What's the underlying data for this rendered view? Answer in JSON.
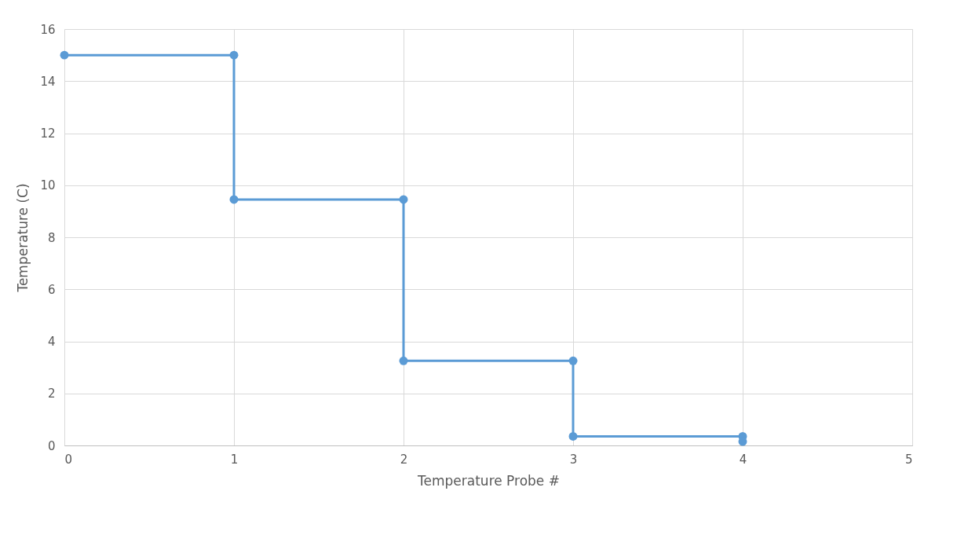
{
  "chart_data": {
    "type": "line",
    "xlabel": "Temperature Probe #",
    "ylabel": "Temperature (C)",
    "x": [
      0,
      1,
      1,
      2,
      2,
      3,
      3,
      4,
      4
    ],
    "series": [
      {
        "color": "#5b9bd5",
        "values": [
          15,
          15,
          9.45,
          9.45,
          3.25,
          3.25,
          0.35,
          0.35,
          0.15
        ]
      }
    ],
    "xlim": [
      0,
      5
    ],
    "xticks": [
      0,
      1,
      2,
      3,
      4,
      5
    ],
    "ylim": [
      0,
      16
    ],
    "yticks": [
      0,
      2,
      4,
      6,
      8,
      10,
      12,
      14,
      16
    ],
    "grid": true,
    "legend": false,
    "marker": "circle",
    "line_style": "solid"
  }
}
